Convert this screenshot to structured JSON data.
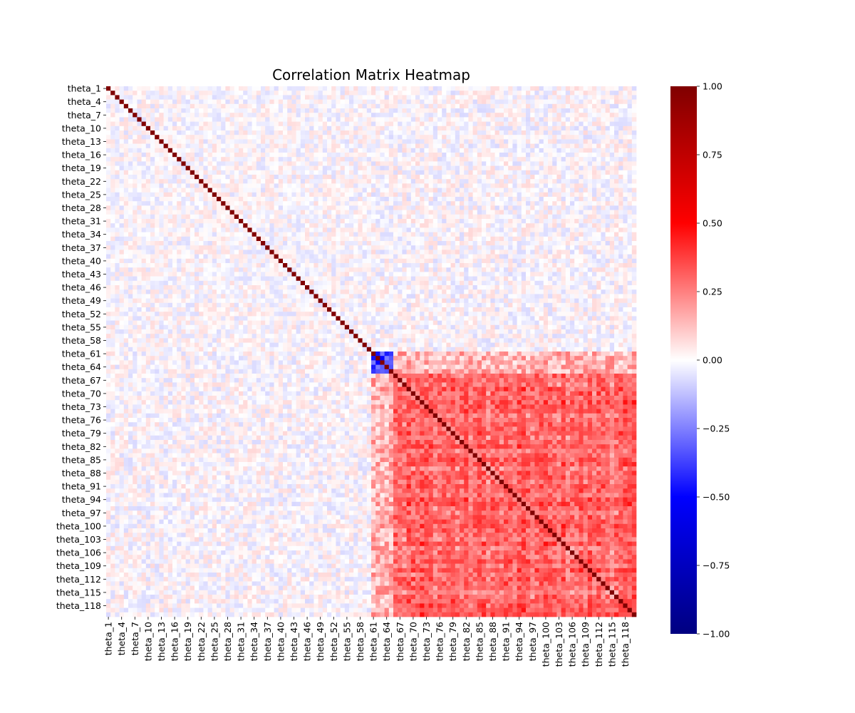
{
  "chart_data": {
    "type": "heatmap",
    "title": "Correlation Matrix Heatmap",
    "xlabel": "",
    "ylabel": "",
    "variable_prefix": "theta_",
    "n_variables": 120,
    "tick_labels": [
      "theta_1",
      "theta_4",
      "theta_7",
      "theta_10",
      "theta_13",
      "theta_16",
      "theta_19",
      "theta_22",
      "theta_25",
      "theta_28",
      "theta_31",
      "theta_34",
      "theta_37",
      "theta_40",
      "theta_43",
      "theta_46",
      "theta_49",
      "theta_52",
      "theta_55",
      "theta_58",
      "theta_61",
      "theta_64",
      "theta_67",
      "theta_70",
      "theta_73",
      "theta_76",
      "theta_79",
      "theta_82",
      "theta_85",
      "theta_88",
      "theta_91",
      "theta_94",
      "theta_97",
      "theta_100",
      "theta_103",
      "theta_106",
      "theta_109",
      "theta_112",
      "theta_115",
      "theta_118"
    ],
    "tick_every": 3,
    "colormap": "seismic",
    "vmin": -1.0,
    "vmax": 1.0,
    "colorbar_ticks": [
      "1.00",
      "0.75",
      "0.50",
      "0.25",
      "0.00",
      "−0.25",
      "−0.50",
      "−0.75",
      "−1.00"
    ],
    "diagonal_value": 1.0,
    "structure": {
      "noise_block": {
        "range": [
          1,
          60
        ],
        "typical_abs_correlation": 0.07
      },
      "correlated_block": {
        "range": [
          61,
          120
        ],
        "typical_correlation": 0.3,
        "peak_correlation": 0.5
      },
      "negative_cluster": {
        "range": [
          61,
          65
        ],
        "typical_correlation": -0.4
      }
    }
  }
}
